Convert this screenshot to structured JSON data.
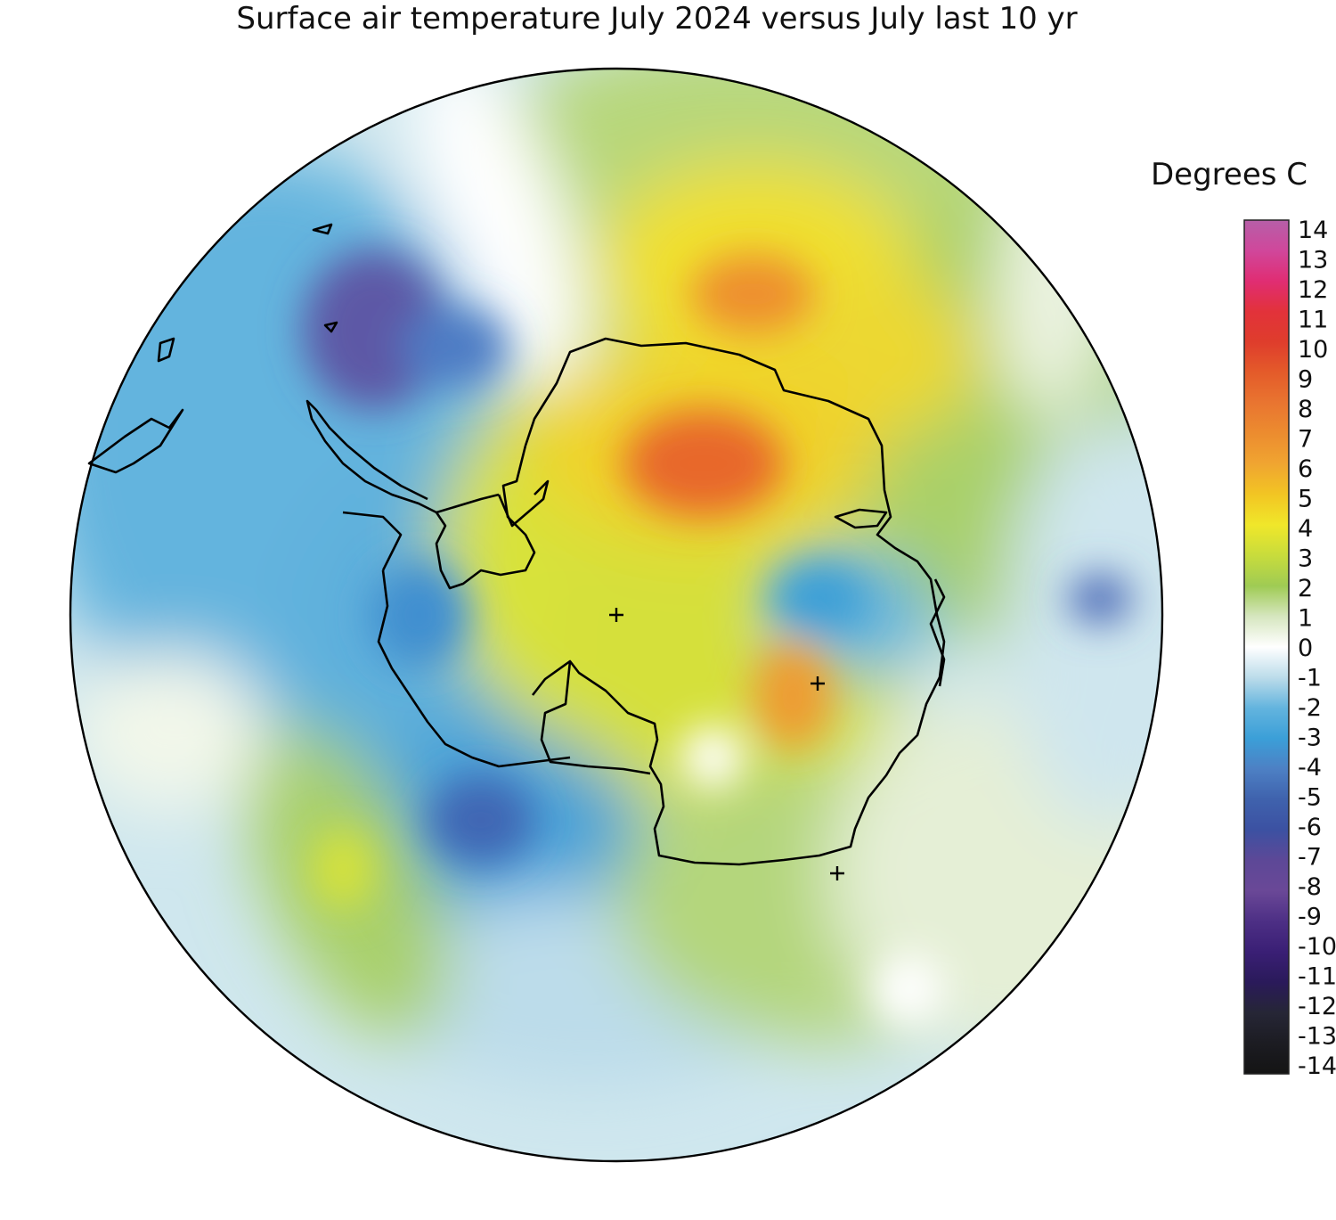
{
  "title": "Surface air temperature July 2024 versus July last 10 yr",
  "legend": {
    "title": "Degrees C",
    "ticks": [
      "14",
      "13",
      "12",
      "11",
      "10",
      "9",
      "8",
      "7",
      "6",
      "5",
      "4",
      "3",
      "2",
      "1",
      "0",
      "-1",
      "-2",
      "-3",
      "-4",
      "-5",
      "-6",
      "-7",
      "-8",
      "-9",
      "-10",
      "-11",
      "-12",
      "-13",
      "-14"
    ],
    "colors": {
      "14": "#b65fa8",
      "13": "#d0479b",
      "12": "#e02d73",
      "11": "#e2323a",
      "10": "#df3d2c",
      "9": "#e45b2a",
      "8": "#e97530",
      "7": "#ec8c2f",
      "6": "#f0a531",
      "5": "#f2c523",
      "4": "#f0e72a",
      "3": "#c8dc3c",
      "2": "#9fcb54",
      "1": "#d6e6bf",
      "0": "#ffffff",
      "-1": "#bcdcea",
      "-2": "#63b4de",
      "-3": "#3b9fd8",
      "-4": "#4d80c4",
      "-5": "#3f62ad",
      "-6": "#3c51a2",
      "-7": "#5d4897",
      "-8": "#6a4897",
      "-9": "#4d2f85",
      "-10": "#3a1f75",
      "-11": "#2a1a5a",
      "-12": "#262636",
      "-13": "#1c1c22",
      "-14": "#141414"
    }
  }
}
